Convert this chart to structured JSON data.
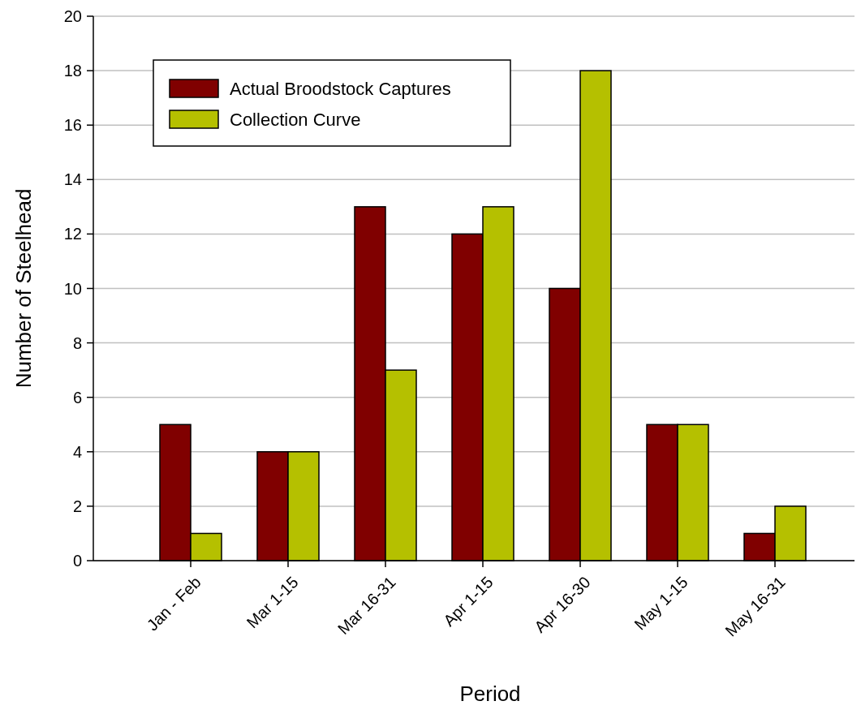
{
  "chart_data": {
    "type": "bar",
    "xlabel": "Period",
    "ylabel": "Number of Steelhead",
    "categories": [
      "Jan - Feb",
      "Mar 1-15",
      "Mar 16-31",
      "Apr 1-15",
      "Apr 16-30",
      "May 1-15",
      "May 16-31"
    ],
    "series": [
      {
        "name": "Actual Broodstock Captures",
        "color": "#800000",
        "values": [
          5,
          4,
          13,
          12,
          10,
          5,
          1
        ]
      },
      {
        "name": "Collection Curve",
        "color": "#b5c000",
        "values": [
          1,
          4,
          7,
          13,
          18,
          5,
          2
        ]
      }
    ],
    "ylim": [
      0,
      20
    ],
    "yticks": [
      0,
      2,
      4,
      6,
      8,
      10,
      12,
      14,
      16,
      18,
      20
    ],
    "grid": "y",
    "legend": "top left"
  }
}
